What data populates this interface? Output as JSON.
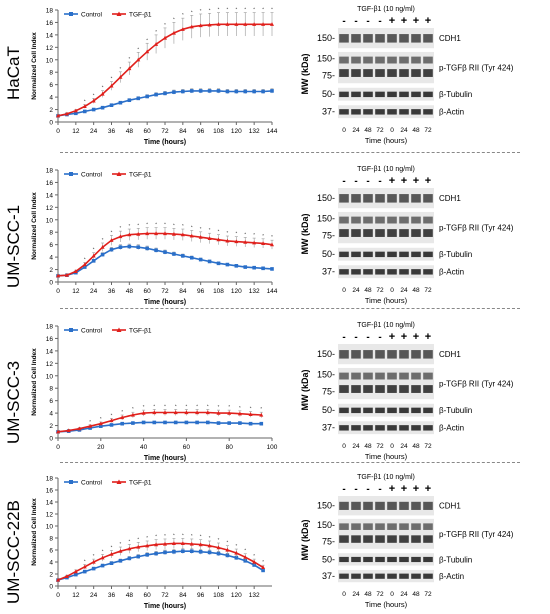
{
  "colors": {
    "control": "#2a6fc9",
    "tgf": "#e0201c"
  },
  "legend": {
    "control": "Control",
    "tgf": "TGF-β1"
  },
  "blot_labels": {
    "treatment": "TGF-β1 (10 ng/ml)",
    "minus": "-",
    "plus": "+",
    "mw_axis": "MW (kDa)",
    "time_axis": "Time (hours)",
    "times": [
      "0",
      "24",
      "48",
      "72",
      "0",
      "24",
      "48",
      "72"
    ],
    "markers": [
      "150-",
      "150-",
      "75-",
      "50-",
      "37-"
    ],
    "proteins": [
      "CDH1",
      "p-TGFβ RII (Tyr 424)",
      "β-Tubulin",
      "β-Actin"
    ]
  },
  "chart_data": [
    {
      "type": "line",
      "cell_line": "HaCaT",
      "xlabel": "Time (hours)",
      "ylabel": "Normalized Cell Index",
      "xlim": [
        0,
        144
      ],
      "ylim": [
        0,
        18
      ],
      "xticks": [
        0,
        12,
        24,
        36,
        48,
        60,
        72,
        84,
        96,
        108,
        120,
        132,
        144
      ],
      "yticks": [
        0,
        2,
        4,
        6,
        8,
        10,
        12,
        14,
        16,
        18
      ],
      "series": [
        {
          "name": "Control",
          "x": [
            0,
            6,
            12,
            18,
            24,
            30,
            36,
            42,
            48,
            54,
            60,
            66,
            72,
            78,
            84,
            90,
            96,
            102,
            108,
            114,
            120,
            126,
            132,
            138,
            144
          ],
          "values": [
            1,
            1.2,
            1.4,
            1.7,
            2,
            2.3,
            2.7,
            3.1,
            3.5,
            3.8,
            4.1,
            4.4,
            4.6,
            4.8,
            4.9,
            5,
            5,
            5,
            5,
            4.9,
            4.9,
            4.9,
            4.9,
            4.9,
            5
          ]
        },
        {
          "name": "TGF-β1",
          "x": [
            0,
            6,
            12,
            18,
            24,
            30,
            36,
            42,
            48,
            54,
            60,
            66,
            72,
            78,
            84,
            90,
            96,
            102,
            108,
            114,
            120,
            126,
            132,
            138,
            144
          ],
          "values": [
            1,
            1.3,
            1.8,
            2.5,
            3.4,
            4.5,
            5.8,
            7.2,
            8.6,
            10,
            11.3,
            12.5,
            13.5,
            14.3,
            14.9,
            15.3,
            15.5,
            15.6,
            15.7,
            15.7,
            15.7,
            15.7,
            15.7,
            15.7,
            15.7
          ]
        }
      ]
    },
    {
      "type": "line",
      "cell_line": "UM-SCC-1",
      "xlabel": "Time (hours)",
      "ylabel": "Normalized Cell Index",
      "xlim": [
        0,
        144
      ],
      "ylim": [
        0,
        18
      ],
      "xticks": [
        0,
        12,
        24,
        36,
        48,
        60,
        72,
        84,
        96,
        108,
        120,
        132,
        144
      ],
      "yticks": [
        0,
        2,
        4,
        6,
        8,
        10,
        12,
        14,
        16,
        18
      ],
      "series": [
        {
          "name": "Control",
          "x": [
            0,
            6,
            12,
            18,
            24,
            30,
            36,
            42,
            48,
            54,
            60,
            66,
            72,
            78,
            84,
            90,
            96,
            102,
            108,
            114,
            120,
            126,
            132,
            138,
            144
          ],
          "values": [
            1,
            1.1,
            1.5,
            2.4,
            3.4,
            4.4,
            5.2,
            5.6,
            5.7,
            5.6,
            5.4,
            5.1,
            4.8,
            4.5,
            4.2,
            3.9,
            3.6,
            3.3,
            3.0,
            2.8,
            2.6,
            2.4,
            2.3,
            2.2,
            2.1
          ]
        },
        {
          "name": "TGF-β1",
          "x": [
            0,
            6,
            12,
            18,
            24,
            30,
            36,
            42,
            48,
            54,
            60,
            66,
            72,
            78,
            84,
            90,
            96,
            102,
            108,
            114,
            120,
            126,
            132,
            138,
            144
          ],
          "values": [
            1,
            1.1,
            1.7,
            2.8,
            4.2,
            5.6,
            6.7,
            7.3,
            7.6,
            7.7,
            7.8,
            7.8,
            7.8,
            7.7,
            7.6,
            7.4,
            7.2,
            7.0,
            6.8,
            6.6,
            6.5,
            6.4,
            6.3,
            6.2,
            6.0
          ]
        }
      ]
    },
    {
      "type": "line",
      "cell_line": "UM-SCC-3",
      "xlabel": "Time (hours)",
      "ylabel": "Normalized Cell Index",
      "xlim": [
        0,
        100
      ],
      "ylim": [
        0,
        18
      ],
      "xticks": [
        0,
        20,
        40,
        60,
        80,
        100
      ],
      "yticks": [
        0,
        2,
        4,
        6,
        8,
        10,
        12,
        14,
        16,
        18
      ],
      "series": [
        {
          "name": "Control",
          "x": [
            0,
            5,
            10,
            15,
            20,
            25,
            30,
            35,
            40,
            45,
            50,
            55,
            60,
            65,
            70,
            75,
            80,
            85,
            90,
            95
          ],
          "values": [
            1,
            1.1,
            1.3,
            1.6,
            1.9,
            2.1,
            2.3,
            2.4,
            2.5,
            2.5,
            2.5,
            2.5,
            2.5,
            2.5,
            2.5,
            2.4,
            2.4,
            2.4,
            2.3,
            2.3
          ]
        },
        {
          "name": "TGF-β1",
          "x": [
            0,
            5,
            10,
            15,
            20,
            25,
            30,
            35,
            40,
            45,
            50,
            55,
            60,
            65,
            70,
            75,
            80,
            85,
            90,
            95
          ],
          "values": [
            1,
            1.2,
            1.5,
            1.9,
            2.3,
            2.8,
            3.3,
            3.7,
            4.0,
            4.1,
            4.1,
            4.1,
            4.1,
            4.1,
            4.1,
            4.0,
            4.0,
            3.9,
            3.8,
            3.7
          ]
        }
      ]
    },
    {
      "type": "line",
      "cell_line": "UM-SCC-22B",
      "xlabel": "Time (hours)",
      "ylabel": "Normalized Cell Index",
      "xlim": [
        0,
        144
      ],
      "ylim": [
        0,
        18
      ],
      "xticks": [
        0,
        12,
        24,
        36,
        48,
        60,
        72,
        84,
        96,
        108,
        120,
        132
      ],
      "yticks": [
        0,
        2,
        4,
        6,
        8,
        10,
        12,
        14,
        16,
        18
      ],
      "series": [
        {
          "name": "Control",
          "x": [
            0,
            6,
            12,
            18,
            24,
            30,
            36,
            42,
            48,
            54,
            60,
            66,
            72,
            78,
            84,
            90,
            96,
            102,
            108,
            114,
            120,
            126,
            132,
            138
          ],
          "values": [
            1,
            1.4,
            1.9,
            2.4,
            2.9,
            3.4,
            3.8,
            4.2,
            4.6,
            4.9,
            5.2,
            5.4,
            5.6,
            5.7,
            5.8,
            5.8,
            5.7,
            5.6,
            5.4,
            5.1,
            4.7,
            4.2,
            3.5,
            2.6
          ]
        },
        {
          "name": "TGF-β1",
          "x": [
            0,
            6,
            12,
            18,
            24,
            30,
            36,
            42,
            48,
            54,
            60,
            66,
            72,
            78,
            84,
            90,
            96,
            102,
            108,
            114,
            120,
            126,
            132,
            138
          ],
          "values": [
            1,
            1.6,
            2.4,
            3.2,
            4.0,
            4.7,
            5.3,
            5.8,
            6.2,
            6.5,
            6.7,
            6.9,
            7.0,
            7.1,
            7.1,
            7.0,
            6.9,
            6.7,
            6.4,
            6.0,
            5.5,
            4.8,
            4.0,
            3.1
          ]
        }
      ]
    }
  ]
}
